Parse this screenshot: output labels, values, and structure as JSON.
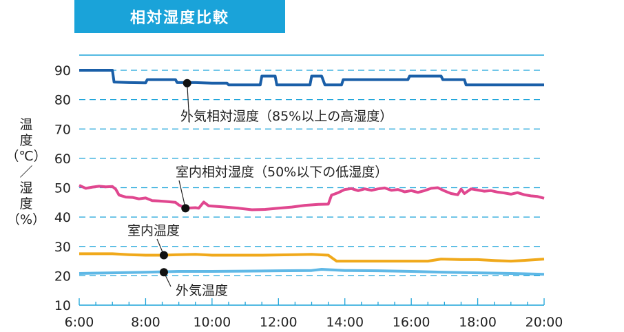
{
  "chart_data": {
    "type": "line",
    "title": "相対湿度比較",
    "ylabel_lines": [
      "温",
      "度",
      "（℃）",
      "／",
      "湿",
      "度",
      "（%）"
    ],
    "xlim": [
      6,
      20
    ],
    "ylim": [
      10,
      90
    ],
    "x_ticks": [
      "6:00",
      "8:00",
      "10:00",
      "12:00",
      "14:00",
      "16:00",
      "18:00",
      "20:00"
    ],
    "y_ticks": [
      "10",
      "20",
      "30",
      "40",
      "50",
      "60",
      "70",
      "80",
      "90"
    ],
    "grid": "dashed horizontal",
    "series": [
      {
        "name": "外気相対湿度（85%以上の高湿度）",
        "color": "#1a5fa8",
        "points": [
          [
            6.0,
            90
          ],
          [
            6.3,
            90
          ],
          [
            6.6,
            90
          ],
          [
            6.8,
            90
          ],
          [
            7.0,
            90
          ],
          [
            7.05,
            86
          ],
          [
            7.5,
            85.8
          ],
          [
            8.0,
            85.7
          ],
          [
            8.05,
            86.8
          ],
          [
            8.5,
            86.8
          ],
          [
            8.9,
            86.8
          ],
          [
            8.95,
            85.8
          ],
          [
            9.5,
            85.8
          ],
          [
            10.0,
            85.6
          ],
          [
            10.45,
            85.6
          ],
          [
            10.5,
            85
          ],
          [
            11.0,
            85
          ],
          [
            11.45,
            85
          ],
          [
            11.5,
            88
          ],
          [
            11.9,
            88
          ],
          [
            11.95,
            85
          ],
          [
            12.5,
            85
          ],
          [
            12.95,
            85
          ],
          [
            13.0,
            88
          ],
          [
            13.3,
            88
          ],
          [
            13.4,
            85
          ],
          [
            13.9,
            85
          ],
          [
            13.95,
            86.8
          ],
          [
            14.5,
            86.8
          ],
          [
            15.0,
            86.8
          ],
          [
            15.5,
            86.8
          ],
          [
            15.9,
            86.8
          ],
          [
            15.95,
            88
          ],
          [
            16.5,
            88
          ],
          [
            16.9,
            88
          ],
          [
            16.95,
            86.8
          ],
          [
            17.5,
            86.8
          ],
          [
            17.6,
            86.8
          ],
          [
            17.65,
            85
          ],
          [
            18.5,
            85
          ],
          [
            19.5,
            85
          ],
          [
            20.0,
            85
          ]
        ]
      },
      {
        "name": "室内相対湿度（50%以下の低湿度）",
        "color": "#e0478f",
        "points": [
          [
            6.0,
            50.8
          ],
          [
            6.2,
            49.8
          ],
          [
            6.4,
            50.2
          ],
          [
            6.6,
            50.5
          ],
          [
            6.8,
            50.3
          ],
          [
            7.0,
            50.4
          ],
          [
            7.1,
            49.5
          ],
          [
            7.2,
            47.5
          ],
          [
            7.4,
            46.8
          ],
          [
            7.6,
            46.7
          ],
          [
            7.8,
            46.2
          ],
          [
            8.0,
            46.5
          ],
          [
            8.2,
            45.6
          ],
          [
            8.4,
            45.5
          ],
          [
            8.6,
            45.3
          ],
          [
            8.9,
            45.0
          ],
          [
            9.0,
            44.1
          ],
          [
            9.2,
            43.0
          ],
          [
            9.5,
            43.2
          ],
          [
            9.6,
            43.0
          ],
          [
            9.75,
            45.1
          ],
          [
            9.9,
            43.8
          ],
          [
            10.3,
            43.5
          ],
          [
            10.8,
            43.0
          ],
          [
            11.2,
            42.5
          ],
          [
            11.6,
            42.6
          ],
          [
            12.0,
            43.0
          ],
          [
            12.4,
            43.4
          ],
          [
            12.8,
            44.0
          ],
          [
            13.2,
            44.3
          ],
          [
            13.5,
            44.4
          ],
          [
            13.6,
            47.5
          ],
          [
            13.8,
            48.3
          ],
          [
            14.0,
            49.4
          ],
          [
            14.2,
            49.7
          ],
          [
            14.4,
            49.0
          ],
          [
            14.6,
            49.6
          ],
          [
            14.8,
            49.1
          ],
          [
            15.0,
            49.6
          ],
          [
            15.2,
            49.9
          ],
          [
            15.4,
            49.1
          ],
          [
            15.6,
            49.4
          ],
          [
            15.8,
            48.6
          ],
          [
            16.0,
            49.0
          ],
          [
            16.2,
            48.4
          ],
          [
            16.4,
            49.0
          ],
          [
            16.6,
            49.8
          ],
          [
            16.8,
            50.0
          ],
          [
            17.0,
            48.9
          ],
          [
            17.2,
            48.0
          ],
          [
            17.4,
            47.6
          ],
          [
            17.5,
            49.5
          ],
          [
            17.6,
            48.0
          ],
          [
            17.8,
            49.6
          ],
          [
            18.0,
            49.2
          ],
          [
            18.2,
            48.8
          ],
          [
            18.4,
            49.0
          ],
          [
            18.6,
            48.5
          ],
          [
            18.8,
            48.2
          ],
          [
            19.0,
            47.8
          ],
          [
            19.2,
            48.3
          ],
          [
            19.4,
            47.6
          ],
          [
            19.6,
            47.2
          ],
          [
            19.8,
            47.0
          ],
          [
            20.0,
            46.4
          ]
        ]
      },
      {
        "name": "室内温度",
        "color": "#f0a91b",
        "points": [
          [
            6.0,
            27.5
          ],
          [
            6.5,
            27.5
          ],
          [
            7.0,
            27.5
          ],
          [
            7.5,
            27.2
          ],
          [
            8.0,
            27.0
          ],
          [
            8.5,
            27.0
          ],
          [
            9.0,
            27.2
          ],
          [
            9.5,
            27.3
          ],
          [
            10.0,
            27.0
          ],
          [
            10.5,
            27.0
          ],
          [
            11.0,
            27.0
          ],
          [
            11.5,
            27.0
          ],
          [
            12.0,
            27.1
          ],
          [
            12.5,
            27.2
          ],
          [
            13.0,
            27.3
          ],
          [
            13.5,
            27.0
          ],
          [
            13.75,
            25.0
          ],
          [
            14.5,
            25.0
          ],
          [
            15.5,
            25.0
          ],
          [
            16.5,
            25.0
          ],
          [
            16.9,
            25.7
          ],
          [
            17.5,
            25.5
          ],
          [
            18.0,
            25.5
          ],
          [
            18.5,
            25.2
          ],
          [
            19.0,
            25.0
          ],
          [
            19.5,
            25.3
          ],
          [
            20.0,
            25.7
          ]
        ]
      },
      {
        "name": "外気温度",
        "color": "#5fb8e6",
        "points": [
          [
            6.0,
            20.8
          ],
          [
            7.0,
            21.0
          ],
          [
            8.0,
            21.2
          ],
          [
            9.0,
            21.5
          ],
          [
            10.0,
            21.5
          ],
          [
            11.0,
            21.6
          ],
          [
            12.0,
            21.7
          ],
          [
            13.0,
            21.8
          ],
          [
            13.3,
            22.2
          ],
          [
            14.0,
            21.8
          ],
          [
            15.0,
            21.7
          ],
          [
            16.0,
            21.5
          ],
          [
            17.0,
            21.2
          ],
          [
            18.0,
            21.0
          ],
          [
            19.0,
            20.8
          ],
          [
            20.0,
            20.5
          ]
        ]
      }
    ],
    "annotations": [
      {
        "label": "外気相対湿度（85%以上の高湿度）",
        "series": 0,
        "x": 9.25,
        "y": 85.6
      },
      {
        "label": "室内相対湿度（50%以下の低湿度）",
        "series": 1,
        "x": 9.2,
        "y": 43.0
      },
      {
        "label": "室内温度",
        "series": 2,
        "x": 8.55,
        "y": 27.0
      },
      {
        "label": "外気温度",
        "series": 3,
        "x": 8.55,
        "y": 21.2
      }
    ]
  }
}
